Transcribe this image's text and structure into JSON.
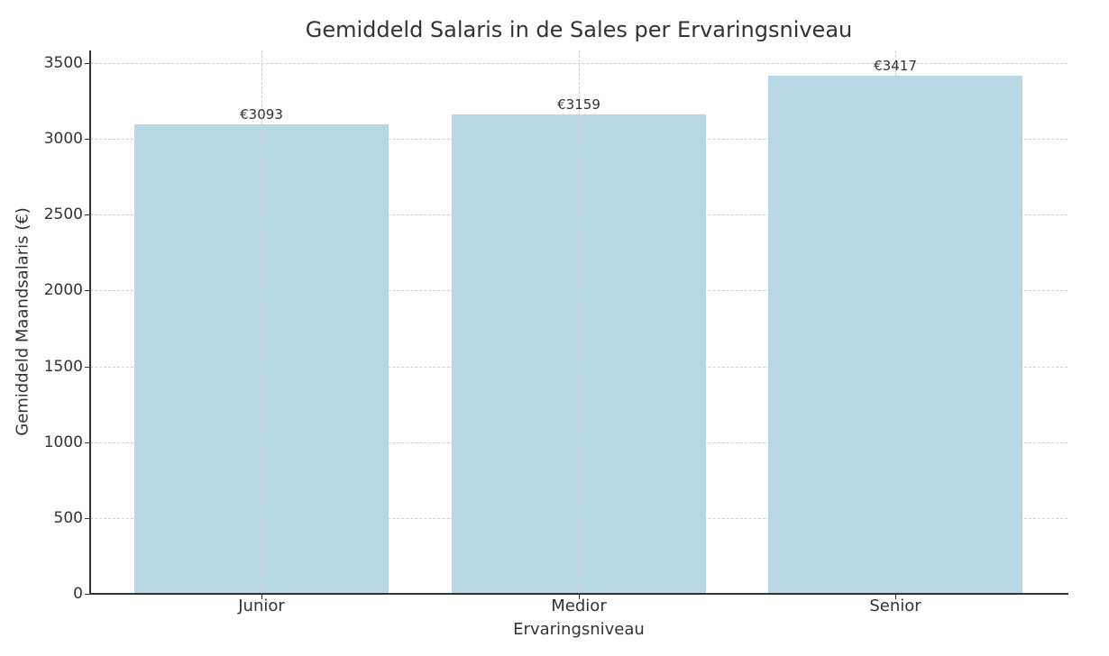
{
  "chart_data": {
    "type": "bar",
    "title": "Gemiddeld Salaris in de Sales per Ervaringsniveau",
    "xlabel": "Ervaringsniveau",
    "ylabel": "Gemiddeld Maandsalaris (€)",
    "categories": [
      "Junior",
      "Medior",
      "Senior"
    ],
    "values": [
      3093,
      3159,
      3417
    ],
    "data_labels": [
      "€3093",
      "€3159",
      "€3417"
    ],
    "ylim": [
      0,
      3580
    ],
    "yticks": [
      0,
      500,
      1000,
      1500,
      2000,
      2500,
      3000,
      3500
    ],
    "ytick_labels": [
      "0",
      "500",
      "1000",
      "1500",
      "2000",
      "2500",
      "3000",
      "3500"
    ],
    "grid": true,
    "grid_style": "dashed",
    "legend": null,
    "bar_color": "#b7d8e3"
  }
}
